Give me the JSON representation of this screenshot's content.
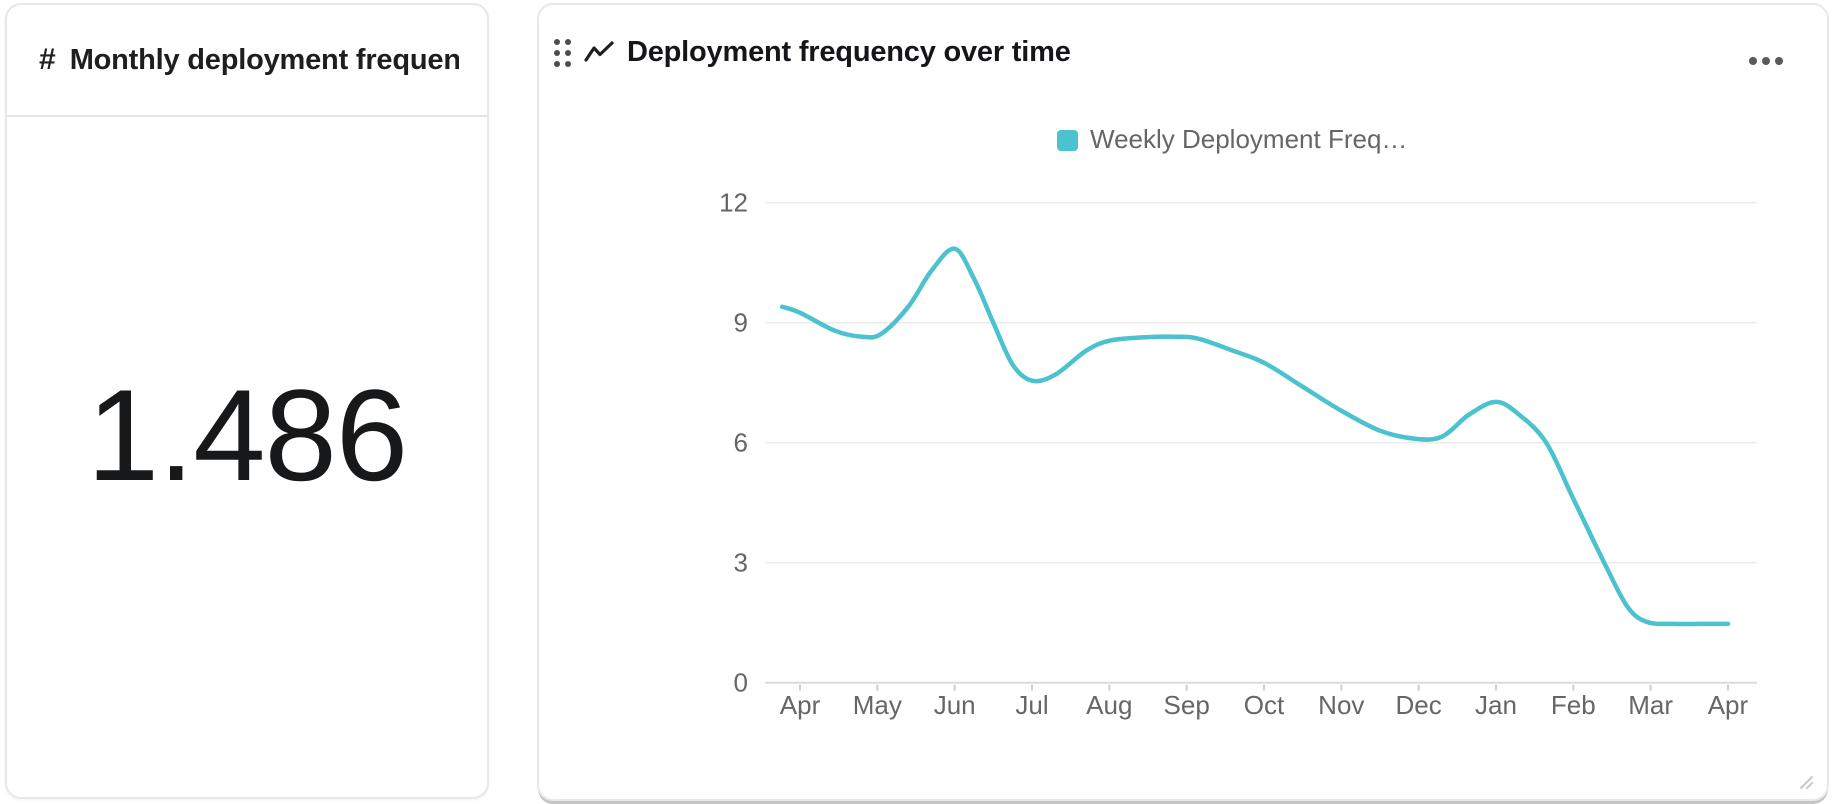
{
  "left_card": {
    "type_icon": "#",
    "title": "Monthly deployment frequen…",
    "value": "1.486"
  },
  "right_card": {
    "title": "Deployment frequency over time"
  },
  "colors": {
    "accent_teal": "#4CC2CF",
    "grid": "#ececec",
    "axis": "#dcdcdc",
    "tick_mark": "#cfcfcf",
    "tick_text": "#666666",
    "legend_text": "#666666",
    "title_text": "#15161a",
    "value_text": "#17181a"
  },
  "chart_data": {
    "type": "line",
    "title": "Deployment frequency over time",
    "legend": [
      {
        "label": "Weekly Deployment Freq…",
        "color": "#4CC2CF"
      }
    ],
    "legend_position": "top-center",
    "grid": "horizontal",
    "line_smooth": true,
    "markers": false,
    "ylim": [
      0,
      12
    ],
    "y_ticks": [
      0,
      3,
      6,
      9,
      12
    ],
    "x_tick_labels": [
      "Apr",
      "May",
      "Jun",
      "Jul",
      "Aug",
      "Sep",
      "Oct",
      "Nov",
      "Dec",
      "Jan",
      "Feb",
      "Mar",
      "Apr"
    ],
    "values_at_month_ticks": [
      9.3,
      8.7,
      10.85,
      7.55,
      8.55,
      8.6,
      8.0,
      6.8,
      6.15,
      7.0,
      4.6,
      1.45,
      1.45
    ],
    "curve_points": [
      [
        -0.23,
        9.4
      ],
      [
        0,
        9.25
      ],
      [
        0.45,
        8.8
      ],
      [
        0.8,
        8.65
      ],
      [
        1.05,
        8.72
      ],
      [
        1.4,
        9.4
      ],
      [
        1.7,
        10.3
      ],
      [
        2,
        10.85
      ],
      [
        2.25,
        10.1
      ],
      [
        2.5,
        9.0
      ],
      [
        2.75,
        7.95
      ],
      [
        3.0,
        7.55
      ],
      [
        3.3,
        7.7
      ],
      [
        3.7,
        8.3
      ],
      [
        4.0,
        8.55
      ],
      [
        4.4,
        8.63
      ],
      [
        4.85,
        8.65
      ],
      [
        5.15,
        8.6
      ],
      [
        5.6,
        8.3
      ],
      [
        6.0,
        8.0
      ],
      [
        6.5,
        7.4
      ],
      [
        7.0,
        6.8
      ],
      [
        7.5,
        6.3
      ],
      [
        7.95,
        6.1
      ],
      [
        8.3,
        6.15
      ],
      [
        8.65,
        6.7
      ],
      [
        9.0,
        7.02
      ],
      [
        9.3,
        6.7
      ],
      [
        9.65,
        6.0
      ],
      [
        10.0,
        4.6
      ],
      [
        10.4,
        3.0
      ],
      [
        10.7,
        1.9
      ],
      [
        10.95,
        1.52
      ],
      [
        11.3,
        1.47
      ],
      [
        11.65,
        1.47
      ],
      [
        12,
        1.47
      ]
    ]
  }
}
